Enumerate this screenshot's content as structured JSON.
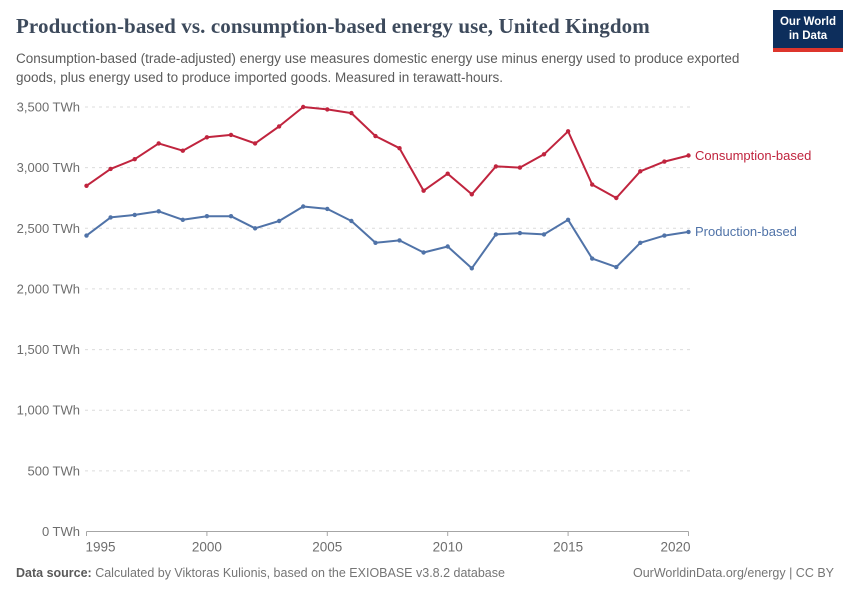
{
  "header": {
    "title": "Production-based vs. consumption-based energy use, United Kingdom",
    "subtitle": "Consumption-based (trade-adjusted) energy use measures domestic energy use minus energy used to produce exported goods, plus energy used to produce imported goods. Measured in terawatt-hours.",
    "logo": {
      "line1": "Our World",
      "line2": "in Data",
      "bg_color": "#0d2e5c",
      "accent_color": "#dd352c"
    }
  },
  "chart_data": {
    "type": "line",
    "title": "Production-based vs. consumption-based energy use, United Kingdom",
    "unit": "TWh",
    "x": [
      1995,
      1996,
      1997,
      1998,
      1999,
      2000,
      2001,
      2002,
      2003,
      2004,
      2005,
      2006,
      2007,
      2008,
      2009,
      2010,
      2011,
      2012,
      2013,
      2014,
      2015,
      2016,
      2017,
      2018,
      2019,
      2020
    ],
    "series": [
      {
        "name": "Consumption-based",
        "color": "#c0243e",
        "values": [
          2850,
          2990,
          3070,
          3200,
          3140,
          3250,
          3270,
          3200,
          3340,
          3500,
          3480,
          3450,
          3260,
          3160,
          2810,
          2950,
          2780,
          3010,
          3000,
          3110,
          3300,
          2860,
          2750,
          2970,
          3050,
          3100
        ]
      },
      {
        "name": "Production-based",
        "color": "#5073a8",
        "values": [
          2440,
          2590,
          2610,
          2640,
          2570,
          2600,
          2600,
          2500,
          2560,
          2680,
          2660,
          2560,
          2380,
          2400,
          2300,
          2350,
          2170,
          2450,
          2460,
          2450,
          2570,
          2250,
          2180,
          2380,
          2440,
          2470
        ]
      }
    ],
    "ylim": [
      0,
      3500
    ],
    "yticks": [
      {
        "value": 0,
        "label": "0 TWh"
      },
      {
        "value": 500,
        "label": "500 TWh"
      },
      {
        "value": 1000,
        "label": "1,000 TWh"
      },
      {
        "value": 1500,
        "label": "1,500 TWh"
      },
      {
        "value": 2000,
        "label": "2,000 TWh"
      },
      {
        "value": 2500,
        "label": "2,500 TWh"
      },
      {
        "value": 3000,
        "label": "3,000 TWh"
      },
      {
        "value": 3500,
        "label": "3,500 TWh"
      }
    ],
    "xticks": [
      {
        "value": 1995,
        "label": "1995"
      },
      {
        "value": 2000,
        "label": "2000"
      },
      {
        "value": 2005,
        "label": "2005"
      },
      {
        "value": 2010,
        "label": "2010"
      },
      {
        "value": 2015,
        "label": "2015"
      },
      {
        "value": 2020,
        "label": "2020"
      }
    ],
    "grid": "horizontal-dashed",
    "legend_position": "right-of-line-end",
    "colors": {
      "gridline": "#dcdcdc",
      "axis": "#a6a6a6",
      "tick_label": "#6e6e6e"
    }
  },
  "footer": {
    "source_label": "Data source:",
    "source_text": " Calculated by Viktoras Kulionis, based on the EXIOBASE v3.8.2 database",
    "credit": "OurWorldinData.org/energy | CC BY"
  }
}
